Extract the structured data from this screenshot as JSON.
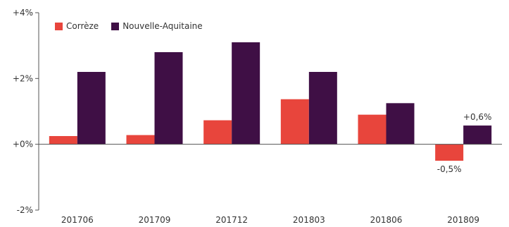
{
  "chart_data": {
    "type": "bar",
    "categories": [
      "201706",
      "201709",
      "201712",
      "201803",
      "201806",
      "201809"
    ],
    "series": [
      {
        "name": "Corrèze",
        "color": "#e8453c",
        "values": [
          0.25,
          0.28,
          0.73,
          1.37,
          0.9,
          -0.5
        ]
      },
      {
        "name": "Nouvelle-Aquitaine",
        "color": "#3f0f45",
        "values": [
          2.2,
          2.8,
          3.1,
          2.2,
          1.25,
          0.57
        ]
      }
    ],
    "ylim": [
      -2,
      4
    ],
    "yticks": [
      {
        "value": 4,
        "label": "+4%"
      },
      {
        "value": 2,
        "label": "+2%"
      },
      {
        "value": 0,
        "label": "+0%"
      },
      {
        "value": -2,
        "label": "-2%"
      }
    ],
    "data_labels": [
      {
        "series": 1,
        "index": 5,
        "text": "+0,6%"
      },
      {
        "series": 0,
        "index": 5,
        "text": "-0,5%"
      }
    ],
    "legend_position": "top-left",
    "grid": false
  }
}
